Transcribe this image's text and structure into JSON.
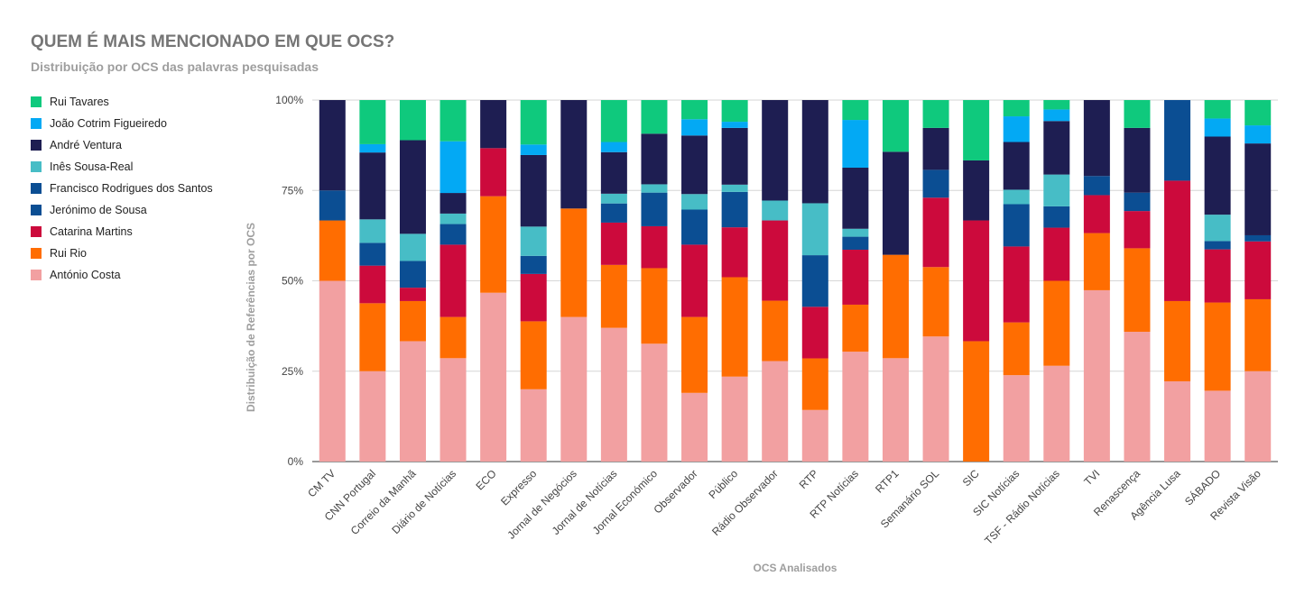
{
  "chart_data": {
    "type": "bar",
    "stacked": true,
    "normalized": true,
    "title": "QUEM É MAIS MENCIONADO EM QUE OCS?",
    "subtitle": "Distribuição por OCS das palavras pesquisadas",
    "xlabel": "OCS Analisados",
    "ylabel": "Distribuição de Referências por OCS",
    "ylim": [
      0,
      100
    ],
    "yticks": [
      "0%",
      "25%",
      "50%",
      "75%",
      "100%"
    ],
    "grid": true,
    "legend_position": "left",
    "categories": [
      "CM TV",
      "CNN Portugal",
      "Correio da Manhã",
      "Diário de Notícias",
      "ECO",
      "Expresso",
      "Jornal de Negócios",
      "Jornal de Notícias",
      "Jornal Económico",
      "Observador",
      "Público",
      "Rádio Observador",
      "RTP",
      "RTP Notícias",
      "RTP1",
      "Semanário SOL",
      "SIC",
      "SIC Notícias",
      "TSF - Rádio Notícias",
      "TVI",
      "Renascença",
      "Agência Lusa",
      "SÁBADO",
      "Revista Visão"
    ],
    "series": [
      {
        "name": "António Costa",
        "color": "#f2a0a1",
        "values": [
          50,
          25,
          33.3,
          28.6,
          46.7,
          20,
          40,
          37,
          32.6,
          19,
          23.5,
          27.8,
          14.3,
          30.4,
          28.6,
          34.6,
          0,
          23.9,
          26.5,
          47.4,
          35.9,
          22.2,
          19.6,
          25
        ]
      },
      {
        "name": "Rui Rio",
        "color": "#ff6d01",
        "values": [
          16.7,
          18.8,
          11.1,
          11.4,
          26.7,
          18.8,
          30,
          17.4,
          20.9,
          21,
          27.5,
          16.7,
          14.3,
          13,
          28.6,
          19.2,
          33.3,
          14.6,
          23.5,
          15.8,
          23.1,
          22.2,
          24.4,
          19.9
        ]
      },
      {
        "name": "Catarina Martins",
        "color": "#cc0a3c",
        "values": [
          0,
          10.4,
          3.7,
          20,
          13.3,
          13.1,
          0,
          11.7,
          11.6,
          20,
          13.8,
          22.2,
          14.3,
          15.2,
          0,
          19.2,
          33.4,
          21,
          14.7,
          10.5,
          10.3,
          33.3,
          14.7,
          16
        ]
      },
      {
        "name": "Jerónimo de Sousa",
        "color": "#0b4e93",
        "values": [
          8.3,
          6.3,
          7.4,
          5.7,
          0,
          5,
          0,
          5.3,
          9.3,
          9.7,
          9.8,
          0,
          14.3,
          3.6,
          0,
          7.7,
          0,
          11.7,
          5.9,
          5.3,
          5.1,
          22.3,
          2.3,
          1.7
        ]
      },
      {
        "name": "Francisco Rodrigues dos Santos",
        "color": "#0b4e93",
        "values": [
          0,
          0,
          0,
          0,
          0,
          0,
          0,
          0,
          0,
          0,
          0,
          0,
          0,
          0,
          0,
          0,
          0,
          0,
          0,
          0,
          0,
          0,
          0,
          0
        ]
      },
      {
        "name": "Inês Sousa-Real",
        "color": "#47bdc6",
        "values": [
          0,
          6.5,
          7.5,
          2.9,
          0,
          8.1,
          0,
          2.7,
          2.3,
          4.3,
          2,
          5.5,
          14.4,
          2.2,
          0,
          0,
          0,
          4,
          8.8,
          0,
          0,
          0,
          7.3,
          0
        ]
      },
      {
        "name": "André Ventura",
        "color": "#1e1e52",
        "values": [
          25,
          18.5,
          25.9,
          5.7,
          13.3,
          19.8,
          30,
          11.5,
          14,
          16.2,
          15.7,
          27.8,
          28.6,
          16.9,
          28.5,
          11.6,
          16.6,
          13.2,
          14.8,
          21,
          17.9,
          0,
          21.6,
          25.4
        ]
      },
      {
        "name": "João Cotrim Figueiredo",
        "color": "#03a9f4",
        "values": [
          0,
          2.3,
          0,
          14.3,
          0,
          2.9,
          0,
          2.8,
          0,
          4.5,
          1.7,
          0,
          0,
          13.2,
          0,
          0,
          0,
          7.1,
          3.2,
          0,
          0,
          0,
          5,
          5
        ]
      },
      {
        "name": "Rui Tavares",
        "color": "#0fc97d",
        "values": [
          0,
          12.2,
          11.1,
          11.4,
          0,
          12.3,
          0,
          11.6,
          9.3,
          5.3,
          6,
          0,
          0,
          5.5,
          14.3,
          7.7,
          16.7,
          4.5,
          2.6,
          0,
          7.7,
          0,
          5.1,
          7
        ]
      }
    ]
  }
}
